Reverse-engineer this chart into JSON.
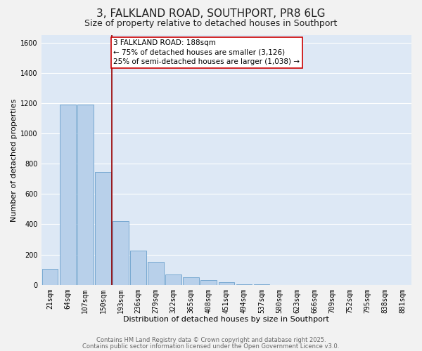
{
  "title": "3, FALKLAND ROAD, SOUTHPORT, PR8 6LG",
  "subtitle": "Size of property relative to detached houses in Southport",
  "xlabel": "Distribution of detached houses by size in Southport",
  "ylabel": "Number of detached properties",
  "bar_labels": [
    "21sqm",
    "64sqm",
    "107sqm",
    "150sqm",
    "193sqm",
    "236sqm",
    "279sqm",
    "322sqm",
    "365sqm",
    "408sqm",
    "451sqm",
    "494sqm",
    "537sqm",
    "580sqm",
    "623sqm",
    "666sqm",
    "709sqm",
    "752sqm",
    "795sqm",
    "838sqm",
    "881sqm"
  ],
  "bar_values": [
    105,
    1190,
    1190,
    745,
    420,
    228,
    150,
    70,
    50,
    32,
    18,
    5,
    2,
    1,
    0,
    0,
    1,
    0,
    0,
    0,
    0
  ],
  "bar_color": "#b8d0ea",
  "bar_edge_color": "#6aa0cc",
  "plot_bg_color": "#dde8f5",
  "fig_bg_color": "#f2f2f2",
  "grid_color": "#ffffff",
  "property_line_color": "#990000",
  "annotation_text": "3 FALKLAND ROAD: 188sqm\n← 75% of detached houses are smaller (3,126)\n25% of semi-detached houses are larger (1,038) →",
  "annotation_box_facecolor": "#ffffff",
  "annotation_box_edgecolor": "#cc0000",
  "ylim": [
    0,
    1650
  ],
  "yticks": [
    0,
    200,
    400,
    600,
    800,
    1000,
    1200,
    1400,
    1600
  ],
  "footer1": "Contains HM Land Registry data © Crown copyright and database right 2025.",
  "footer2": "Contains public sector information licensed under the Open Government Licence v3.0.",
  "title_fontsize": 11,
  "subtitle_fontsize": 9,
  "axis_label_fontsize": 8,
  "tick_fontsize": 7,
  "annotation_fontsize": 7.5,
  "footer_fontsize": 6
}
